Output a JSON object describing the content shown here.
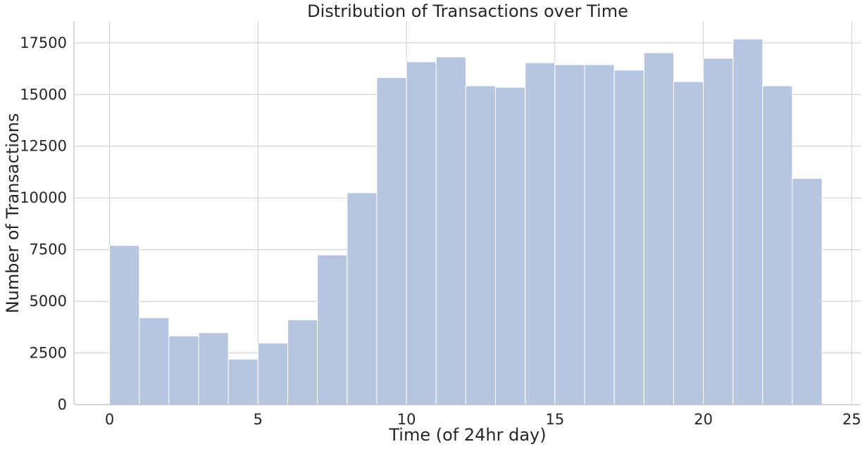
{
  "chart_data": {
    "type": "bar",
    "title": "Distribution of Transactions over Time",
    "xlabel": "Time (of 24hr day)",
    "ylabel": "Number of Transactions",
    "xlim": [
      -1.2,
      25.3
    ],
    "ylim": [
      0,
      18550
    ],
    "xticks": [
      0,
      5,
      10,
      15,
      20,
      25
    ],
    "yticks": [
      0,
      2500,
      5000,
      7500,
      10000,
      12500,
      15000,
      17500
    ],
    "grid": true,
    "bar_color": "#b7c6e0",
    "bin_edges": [
      0,
      1,
      2,
      3,
      4,
      5,
      6,
      7,
      8,
      9,
      10,
      11,
      12,
      13,
      14,
      15,
      16,
      17,
      18,
      19,
      20,
      21,
      22,
      23,
      24
    ],
    "values": [
      7700,
      4200,
      3320,
      3480,
      2200,
      2980,
      4100,
      7240,
      10250,
      15820,
      16580,
      16820,
      15420,
      15350,
      16540,
      16440,
      16440,
      16180,
      17020,
      15620,
      16750,
      17680,
      15420,
      10940
    ]
  }
}
